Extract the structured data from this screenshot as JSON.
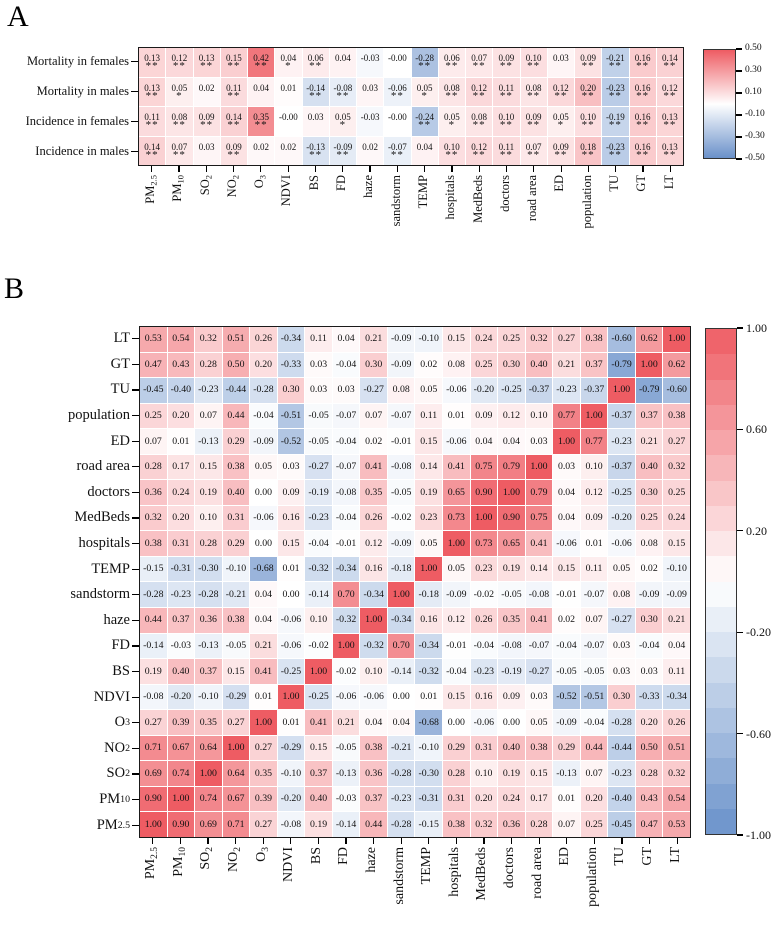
{
  "figure": {
    "background": "#ffffff"
  },
  "colors": {
    "positive_max": "#ee5c63",
    "negative_max": "#6a91ca",
    "zero": "#ffffff",
    "border": "#1a1a1a"
  },
  "chart_data": [
    {
      "type": "heatmap",
      "panel_label": "A",
      "rows": [
        "Mortality in females",
        "Mortality in males",
        "Incidence in females",
        "Incidence in males"
      ],
      "columns": [
        "PM~2.5~",
        "PM~10~",
        "SO~2~",
        "NO~2~",
        "O~3~",
        "NDVI",
        "BS",
        "FD",
        "haze",
        "sandstorm",
        "TEMP",
        "hospitals",
        "MedBeds",
        "doctors",
        "road area",
        "ED",
        "population",
        "TU",
        "GT",
        "LT"
      ],
      "values": [
        [
          "0.13",
          "0.12",
          "0.13",
          "0.15",
          "0.42",
          "0.04",
          "0.06",
          "0.04",
          "-0.03",
          "-0.00",
          "-0.28",
          "0.06",
          "0.07",
          "0.09",
          "0.10",
          "0.03",
          "0.09",
          "-0.21",
          "0.16",
          "0.14"
        ],
        [
          "0.13",
          "0.05",
          "0.02",
          "0.11",
          "0.04",
          "0.01",
          "-0.14",
          "-0.08",
          "0.03",
          "-0.06",
          "0.05",
          "0.08",
          "0.12",
          "0.11",
          "0.08",
          "0.12",
          "0.20",
          "-0.23",
          "0.16",
          "0.12"
        ],
        [
          "0.11",
          "0.08",
          "0.09",
          "0.14",
          "0.35",
          "-0.00",
          "0.03",
          "0.05",
          "-0.03",
          "-0.00",
          "-0.24",
          "0.05",
          "0.08",
          "0.10",
          "0.09",
          "0.05",
          "0.10",
          "-0.19",
          "0.16",
          "0.13"
        ],
        [
          "0.14",
          "0.07",
          "0.03",
          "0.09",
          "0.02",
          "0.02",
          "-0.13",
          "-0.09",
          "0.02",
          "-0.07",
          "0.04",
          "0.10",
          "0.12",
          "0.11",
          "0.07",
          "0.09",
          "0.18",
          "-0.23",
          "0.16",
          "0.13"
        ]
      ],
      "significance": [
        [
          "**",
          "**",
          "**",
          "**",
          "**",
          "*",
          "**",
          "",
          "",
          "",
          "**",
          "**",
          "**",
          "**",
          "**",
          "",
          "**",
          "**",
          "**",
          "**"
        ],
        [
          "**",
          "*",
          "",
          "**",
          "",
          "",
          "**",
          "**",
          "",
          "**",
          "*",
          "**",
          "**",
          "**",
          "**",
          "**",
          "**",
          "**",
          "**",
          "**"
        ],
        [
          "**",
          "**",
          "**",
          "**",
          "**",
          "",
          "",
          "*",
          "",
          "",
          "**",
          "*",
          "**",
          "**",
          "**",
          "*",
          "**",
          "**",
          "**",
          "**"
        ],
        [
          "**",
          "**",
          "",
          "**",
          "",
          "",
          "**",
          "**",
          "",
          "**",
          "",
          "**",
          "**",
          "**",
          "**",
          "**",
          "**",
          "**",
          "**",
          "**"
        ]
      ],
      "vmin": -0.5,
      "vmax": 0.5,
      "colorbar": {
        "style": "smooth",
        "ticks": [
          "0.50",
          "0.30",
          "0.10",
          "-0.10",
          "-0.30",
          "-0.50"
        ]
      }
    },
    {
      "type": "heatmap",
      "panel_label": "B",
      "rows": [
        "LT",
        "GT",
        "TU",
        "population",
        "ED",
        "road area",
        "doctors",
        "MedBeds",
        "hospitals",
        "TEMP",
        "sandstorm",
        "haze",
        "FD",
        "BS",
        "NDVI",
        "O~3~",
        "NO~2~",
        "SO~2~",
        "PM~10~",
        "PM~2.5~"
      ],
      "columns": [
        "PM~2.5~",
        "PM~10~",
        "SO~2~",
        "NO~2~",
        "O~3~",
        "NDVI",
        "BS",
        "FD",
        "haze",
        "sandstorm",
        "TEMP",
        "hospitals",
        "MedBeds",
        "doctors",
        "road area",
        "ED",
        "population",
        "TU",
        "GT",
        "LT"
      ],
      "values": [
        [
          "0.53",
          "0.54",
          "0.32",
          "0.51",
          "0.26",
          "-0.34",
          "0.11",
          "0.04",
          "0.21",
          "-0.09",
          "-0.10",
          "0.15",
          "0.24",
          "0.25",
          "0.32",
          "0.27",
          "0.38",
          "-0.60",
          "0.62",
          "1.00"
        ],
        [
          "0.47",
          "0.43",
          "0.28",
          "0.50",
          "0.20",
          "-0.33",
          "0.03",
          "-0.04",
          "0.30",
          "-0.09",
          "0.02",
          "0.08",
          "0.25",
          "0.30",
          "0.40",
          "0.21",
          "0.37",
          "-0.79",
          "1.00",
          "0.62"
        ],
        [
          "-0.45",
          "-0.40",
          "-0.23",
          "-0.44",
          "-0.28",
          "0.30",
          "0.03",
          "0.03",
          "-0.27",
          "0.08",
          "0.05",
          "-0.06",
          "-0.20",
          "-0.25",
          "-0.37",
          "-0.23",
          "-0.37",
          "1.00",
          "-0.79",
          "-0.60"
        ],
        [
          "0.25",
          "0.20",
          "0.07",
          "0.44",
          "-0.04",
          "-0.51",
          "-0.05",
          "-0.07",
          "0.07",
          "-0.07",
          "0.11",
          "0.01",
          "0.09",
          "0.12",
          "0.10",
          "0.77",
          "1.00",
          "-0.37",
          "0.37",
          "0.38"
        ],
        [
          "0.07",
          "0.01",
          "-0.13",
          "0.29",
          "-0.09",
          "-0.52",
          "-0.05",
          "-0.04",
          "0.02",
          "-0.01",
          "0.15",
          "-0.06",
          "0.04",
          "0.04",
          "0.03",
          "1.00",
          "0.77",
          "-0.23",
          "0.21",
          "0.27"
        ],
        [
          "0.28",
          "0.17",
          "0.15",
          "0.38",
          "0.05",
          "0.03",
          "-0.27",
          "-0.07",
          "0.41",
          "-0.08",
          "0.14",
          "0.41",
          "0.75",
          "0.79",
          "1.00",
          "0.03",
          "0.10",
          "-0.37",
          "0.40",
          "0.32"
        ],
        [
          "0.36",
          "0.24",
          "0.19",
          "0.40",
          "0.00",
          "0.09",
          "-0.19",
          "-0.08",
          "0.35",
          "-0.05",
          "0.19",
          "0.65",
          "0.90",
          "1.00",
          "0.79",
          "0.04",
          "0.12",
          "-0.25",
          "0.30",
          "0.25"
        ],
        [
          "0.32",
          "0.20",
          "0.10",
          "0.31",
          "-0.06",
          "0.16",
          "-0.23",
          "-0.04",
          "0.26",
          "-0.02",
          "0.23",
          "0.73",
          "1.00",
          "0.90",
          "0.75",
          "0.04",
          "0.09",
          "-0.20",
          "0.25",
          "0.24"
        ],
        [
          "0.38",
          "0.31",
          "0.28",
          "0.29",
          "0.00",
          "0.15",
          "-0.04",
          "-0.01",
          "0.12",
          "-0.09",
          "0.05",
          "1.00",
          "0.73",
          "0.65",
          "0.41",
          "-0.06",
          "0.01",
          "-0.06",
          "0.08",
          "0.15"
        ],
        [
          "-0.15",
          "-0.31",
          "-0.30",
          "-0.10",
          "-0.68",
          "0.01",
          "-0.32",
          "-0.34",
          "0.16",
          "-0.18",
          "1.00",
          "0.05",
          "0.23",
          "0.19",
          "0.14",
          "0.15",
          "0.11",
          "0.05",
          "0.02",
          "-0.10"
        ],
        [
          "-0.28",
          "-0.23",
          "-0.28",
          "-0.21",
          "0.04",
          "0.00",
          "-0.14",
          "0.70",
          "-0.34",
          "1.00",
          "-0.18",
          "-0.09",
          "-0.02",
          "-0.05",
          "-0.08",
          "-0.01",
          "-0.07",
          "0.08",
          "-0.09",
          "-0.09"
        ],
        [
          "0.44",
          "0.37",
          "0.36",
          "0.38",
          "0.04",
          "-0.06",
          "0.10",
          "-0.32",
          "1.00",
          "-0.34",
          "0.16",
          "0.12",
          "0.26",
          "0.35",
          "0.41",
          "0.02",
          "0.07",
          "-0.27",
          "0.30",
          "0.21"
        ],
        [
          "-0.14",
          "-0.03",
          "-0.13",
          "-0.05",
          "0.21",
          "-0.06",
          "-0.02",
          "1.00",
          "-0.32",
          "0.70",
          "-0.34",
          "-0.01",
          "-0.04",
          "-0.08",
          "-0.07",
          "-0.04",
          "-0.07",
          "0.03",
          "-0.04",
          "0.04"
        ],
        [
          "0.19",
          "0.40",
          "0.37",
          "0.15",
          "0.41",
          "-0.25",
          "1.00",
          "-0.02",
          "0.10",
          "-0.14",
          "-0.32",
          "-0.04",
          "-0.23",
          "-0.19",
          "-0.27",
          "-0.05",
          "-0.05",
          "0.03",
          "0.03",
          "0.11"
        ],
        [
          "-0.08",
          "-0.20",
          "-0.10",
          "-0.29",
          "0.01",
          "1.00",
          "-0.25",
          "-0.06",
          "-0.06",
          "0.00",
          "0.01",
          "0.15",
          "0.16",
          "0.09",
          "0.03",
          "-0.52",
          "-0.51",
          "0.30",
          "-0.33",
          "-0.34"
        ],
        [
          "0.27",
          "0.39",
          "0.35",
          "0.27",
          "1.00",
          "0.01",
          "0.41",
          "0.21",
          "0.04",
          "0.04",
          "-0.68",
          "0.00",
          "-0.06",
          "0.00",
          "0.05",
          "-0.09",
          "-0.04",
          "-0.28",
          "0.20",
          "0.26"
        ],
        [
          "0.71",
          "0.67",
          "0.64",
          "1.00",
          "0.27",
          "-0.29",
          "0.15",
          "-0.05",
          "0.38",
          "-0.21",
          "-0.10",
          "0.29",
          "0.31",
          "0.40",
          "0.38",
          "0.29",
          "0.44",
          "-0.44",
          "0.50",
          "0.51"
        ],
        [
          "0.69",
          "0.74",
          "1.00",
          "0.64",
          "0.35",
          "-0.10",
          "0.37",
          "-0.13",
          "0.36",
          "-0.28",
          "-0.30",
          "0.28",
          "0.10",
          "0.19",
          "0.15",
          "-0.13",
          "0.07",
          "-0.23",
          "0.28",
          "0.32"
        ],
        [
          "0.90",
          "1.00",
          "0.74",
          "0.67",
          "0.39",
          "-0.20",
          "0.40",
          "-0.03",
          "0.37",
          "-0.23",
          "-0.31",
          "0.31",
          "0.20",
          "0.24",
          "0.17",
          "0.01",
          "0.20",
          "-0.40",
          "0.43",
          "0.54"
        ],
        [
          "1.00",
          "0.90",
          "0.69",
          "0.71",
          "0.27",
          "-0.08",
          "0.19",
          "-0.14",
          "0.44",
          "-0.28",
          "-0.15",
          "0.38",
          "0.32",
          "0.36",
          "0.28",
          "0.07",
          "0.25",
          "-0.45",
          "0.47",
          "0.53"
        ]
      ],
      "vmin": -1.0,
      "vmax": 1.0,
      "colorbar": {
        "style": "stepped",
        "steps": 20,
        "ticks": [
          "1.00",
          "0.60",
          "0.20",
          "-0.20",
          "-0.60",
          "-1.00"
        ]
      }
    }
  ]
}
